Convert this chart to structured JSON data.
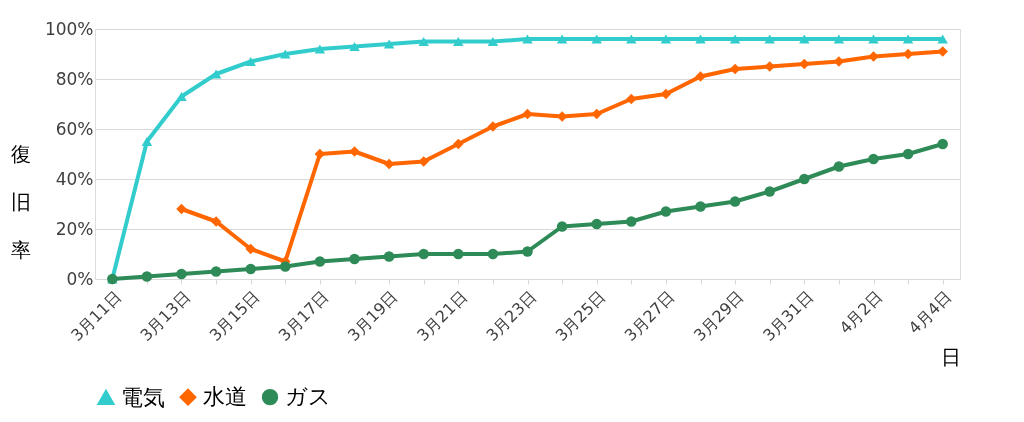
{
  "chart_data": {
    "type": "line",
    "xlabel": "日",
    "ylabel": "復旧率",
    "categories": [
      "3月11日",
      null,
      "3月13日",
      null,
      "3月15日",
      null,
      "3月17日",
      null,
      "3月19日",
      null,
      "3月21日",
      null,
      "3月23日",
      null,
      "3月25日",
      null,
      "3月27日",
      null,
      "3月29日",
      null,
      "3月31日",
      null,
      "4月2日",
      null,
      "4月4日"
    ],
    "series": [
      {
        "name": "電気",
        "color": "#33cccc",
        "marker": "triangle",
        "values": [
          0,
          55,
          73,
          82,
          87,
          90,
          92,
          93,
          94,
          95,
          95,
          95,
          96,
          96,
          96,
          96,
          96,
          96,
          96,
          96,
          96,
          96,
          96,
          96,
          96
        ]
      },
      {
        "name": "水道",
        "color": "#ff6600",
        "marker": "diamond",
        "values": [
          null,
          null,
          28,
          23,
          12,
          7,
          50,
          51,
          46,
          47,
          54,
          61,
          66,
          65,
          66,
          72,
          74,
          81,
          84,
          85,
          86,
          87,
          89,
          90,
          91
        ]
      },
      {
        "name": "ガス",
        "color": "#2e8b57",
        "marker": "circle",
        "values": [
          0,
          1,
          2,
          3,
          4,
          5,
          7,
          8,
          9,
          10,
          10,
          10,
          11,
          21,
          22,
          23,
          27,
          29,
          31,
          35,
          40,
          45,
          48,
          50,
          54
        ]
      }
    ],
    "ylim": [
      0,
      100
    ],
    "yticks": [
      {
        "value": 0,
        "label": "0%"
      },
      {
        "value": 20,
        "label": "20%"
      },
      {
        "value": 40,
        "label": "40%"
      },
      {
        "value": 60,
        "label": "60%"
      },
      {
        "value": 80,
        "label": "80%"
      },
      {
        "value": 100,
        "label": "100%"
      }
    ],
    "grid": "y",
    "legend": "bottom",
    "line_style": "solid"
  }
}
